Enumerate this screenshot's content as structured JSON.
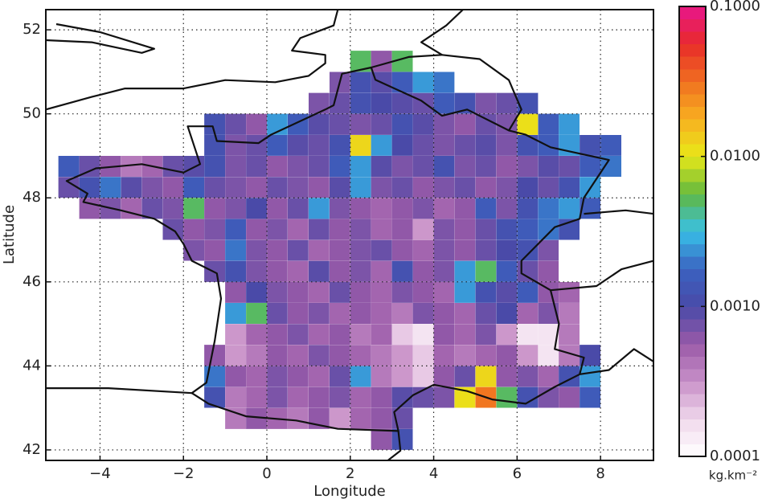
{
  "chart_data": {
    "type": "heatmap",
    "xlabel": "Longitude",
    "ylabel": "Latitude",
    "xlim": [
      -5.3,
      9.27
    ],
    "ylim": [
      41.75,
      52.48
    ],
    "xticks": [
      {
        "value": -4,
        "label": "−4"
      },
      {
        "value": -2,
        "label": "−2"
      },
      0,
      2,
      4,
      6,
      8
    ],
    "yticks": [
      42,
      44,
      46,
      48,
      50,
      52
    ],
    "grid": true,
    "x_edges": [
      -5,
      -4.5,
      -4,
      -3.5,
      -3,
      -2.5,
      -2,
      -1.5,
      -1,
      -0.5,
      0,
      0.5,
      1,
      1.5,
      2,
      2.5,
      3,
      3.5,
      4,
      4.5,
      5,
      5.5,
      6,
      6.5,
      7,
      7.5,
      8,
      8.5
    ],
    "y_edges": [
      42,
      42.5,
      43,
      43.5,
      44,
      44.5,
      45,
      45.5,
      46,
      46.5,
      47,
      47.5,
      48,
      48.5,
      49,
      49.5,
      50,
      50.5,
      51,
      51.5
    ],
    "values": [
      [
        null,
        null,
        null,
        null,
        null,
        null,
        null,
        null,
        null,
        null,
        null,
        null,
        null,
        null,
        null,
        0.0006,
        0.0012,
        null,
        null,
        null,
        null,
        null,
        null,
        null,
        null,
        null,
        null
      ],
      [
        null,
        null,
        null,
        null,
        null,
        null,
        null,
        null,
        0.0004,
        0.0006,
        0.0005,
        0.0004,
        0.0006,
        0.0003,
        0.0005,
        0.0006,
        0.0008,
        null,
        null,
        null,
        null,
        null,
        null,
        null,
        null,
        null,
        null
      ],
      [
        null,
        null,
        null,
        null,
        null,
        null,
        null,
        0.0012,
        0.0004,
        0.0005,
        0.0007,
        0.0005,
        0.0006,
        0.0007,
        0.0005,
        0.0006,
        0.0009,
        0.0008,
        0.0007,
        0.011,
        0.03,
        0.005,
        0.0012,
        0.0007,
        0.0006,
        0.0015,
        null
      ],
      [
        null,
        null,
        null,
        null,
        null,
        null,
        null,
        0.002,
        0.0006,
        0.0005,
        0.0007,
        0.0006,
        0.0005,
        0.0008,
        0.0025,
        0.0004,
        0.0003,
        0.0002,
        0.0006,
        0.0008,
        0.012,
        0.0006,
        0.0007,
        0.0005,
        0.0012,
        0.0025,
        null
      ],
      [
        null,
        null,
        null,
        null,
        null,
        null,
        null,
        0.0006,
        0.0003,
        0.0004,
        0.0006,
        0.0005,
        0.0007,
        0.0006,
        0.0005,
        0.0004,
        0.0003,
        0.0002,
        0.0005,
        0.0004,
        0.0005,
        0.0006,
        0.0003,
        0.00015,
        0.0004,
        0.001,
        null
      ],
      [
        null,
        null,
        null,
        null,
        null,
        null,
        null,
        null,
        0.0003,
        0.0005,
        0.0006,
        0.0007,
        0.0005,
        0.0006,
        0.0004,
        0.0005,
        0.0002,
        0.00015,
        0.0006,
        0.0005,
        0.0007,
        0.0003,
        0.00015,
        0.00015,
        0.0004,
        null,
        null
      ],
      [
        null,
        null,
        null,
        null,
        null,
        null,
        null,
        null,
        0.0025,
        0.005,
        0.0008,
        0.0006,
        0.0007,
        0.0005,
        0.0006,
        0.0005,
        0.0004,
        0.0007,
        0.0006,
        0.0005,
        0.0008,
        0.001,
        0.0005,
        0.0007,
        0.0004,
        null,
        null
      ],
      [
        null,
        null,
        null,
        null,
        null,
        null,
        null,
        null,
        0.0006,
        0.001,
        0.0007,
        0.0006,
        0.0005,
        0.0008,
        0.0006,
        0.0005,
        0.0007,
        0.0006,
        0.0005,
        0.0025,
        0.0012,
        0.0009,
        0.0015,
        0.0006,
        0.0005,
        null,
        null
      ],
      [
        null,
        null,
        null,
        null,
        null,
        null,
        null,
        0.0008,
        0.0012,
        0.0007,
        0.0006,
        0.0005,
        0.0009,
        0.0006,
        0.0007,
        0.0005,
        0.0012,
        0.0006,
        0.0007,
        0.0025,
        0.005,
        0.0015,
        0.0008,
        0.0006,
        null,
        null,
        null
      ],
      [
        null,
        null,
        null,
        null,
        null,
        null,
        0.0007,
        0.0006,
        0.002,
        0.0007,
        0.0006,
        0.0008,
        0.0005,
        0.0006,
        0.0007,
        0.0008,
        0.0006,
        0.0005,
        0.0007,
        0.0006,
        0.0008,
        0.001,
        0.0012,
        0.0007,
        null,
        null,
        null
      ],
      [
        null,
        null,
        null,
        null,
        null,
        0.0008,
        0.0006,
        0.0007,
        0.0015,
        0.0006,
        0.0007,
        0.0005,
        0.0008,
        0.0006,
        0.0007,
        0.0005,
        0.0006,
        0.0003,
        0.0007,
        0.0006,
        0.0008,
        0.0012,
        0.0015,
        0.002,
        0.0012,
        null,
        null
      ],
      [
        null,
        0.0006,
        0.0007,
        0.0005,
        0.0008,
        0.0007,
        0.005,
        0.0006,
        0.0007,
        0.001,
        0.0006,
        0.0008,
        0.0025,
        0.0007,
        0.0006,
        0.0005,
        0.0006,
        0.0007,
        0.0005,
        0.0006,
        0.0015,
        0.0007,
        0.0012,
        0.002,
        0.0025,
        0.0015,
        null
      ],
      [
        0.0008,
        0.0012,
        0.002,
        0.0009,
        0.0007,
        0.0006,
        0.0015,
        0.0008,
        0.0007,
        0.0006,
        0.0008,
        0.0007,
        0.0006,
        0.0009,
        0.0025,
        0.0007,
        0.0008,
        0.0006,
        0.0007,
        0.0008,
        0.0006,
        0.0007,
        0.001,
        0.0008,
        0.0012,
        0.0025,
        null
      ],
      [
        0.0015,
        0.0008,
        0.0006,
        0.0004,
        0.0005,
        0.0008,
        0.0009,
        0.0012,
        0.0007,
        0.0008,
        0.0006,
        0.0007,
        0.0008,
        0.0015,
        0.0025,
        0.0009,
        0.0007,
        0.0008,
        0.0012,
        0.0007,
        0.0008,
        0.0006,
        0.0007,
        0.0009,
        0.0008,
        0.0015,
        0.002
      ],
      [
        null,
        null,
        null,
        null,
        null,
        null,
        null,
        0.0012,
        0.0007,
        0.0008,
        0.0015,
        0.0009,
        0.0008,
        0.0012,
        0.012,
        0.0025,
        0.001,
        0.0008,
        0.0007,
        0.0008,
        0.0009,
        0.0007,
        0.0012,
        0.0015,
        0.0025,
        0.0012,
        0.0015
      ],
      [
        null,
        null,
        null,
        null,
        null,
        null,
        null,
        0.0012,
        0.0008,
        0.0006,
        0.0025,
        0.0015,
        0.0009,
        0.0008,
        0.0007,
        0.0008,
        0.0012,
        0.0009,
        0.0007,
        0.0006,
        0.0008,
        0.0007,
        0.011,
        0.0015,
        0.0025,
        null,
        null
      ],
      [
        null,
        null,
        null,
        null,
        null,
        null,
        null,
        null,
        null,
        null,
        null,
        null,
        0.0007,
        0.0008,
        0.0012,
        0.001,
        0.0009,
        0.0008,
        0.0015,
        0.0012,
        0.0007,
        0.0008,
        0.0012,
        null,
        null,
        null,
        null
      ],
      [
        null,
        null,
        null,
        null,
        null,
        null,
        null,
        null,
        null,
        null,
        null,
        null,
        null,
        0.0007,
        0.0012,
        0.0009,
        0.0015,
        0.0025,
        0.002,
        null,
        null,
        null,
        null,
        null,
        null,
        null,
        null
      ],
      [
        null,
        null,
        null,
        null,
        null,
        null,
        null,
        null,
        null,
        null,
        null,
        null,
        null,
        null,
        0.005,
        0.0006,
        0.005,
        null,
        null,
        null,
        null,
        null,
        null,
        null,
        null,
        null,
        null
      ]
    ],
    "colorbar": {
      "label": "kg.km⁻²",
      "log": true,
      "lim": [
        0.0001,
        0.1
      ],
      "ticks": [
        {
          "value": 0.0001,
          "label": "0.0001"
        },
        {
          "value": 0.001,
          "label": "0.0010"
        },
        {
          "value": 0.01,
          "label": "0.0100"
        },
        {
          "value": 0.1,
          "label": "0.1000"
        }
      ],
      "colors": [
        "#ffffff",
        "#f0d8ec",
        "#c890c8",
        "#9a5aa8",
        "#4a4aa8",
        "#3a62c0",
        "#38c0e8",
        "#60b840",
        "#e8e818",
        "#f8b020",
        "#f07020",
        "#e82a2a",
        "#e8168c"
      ]
    }
  }
}
